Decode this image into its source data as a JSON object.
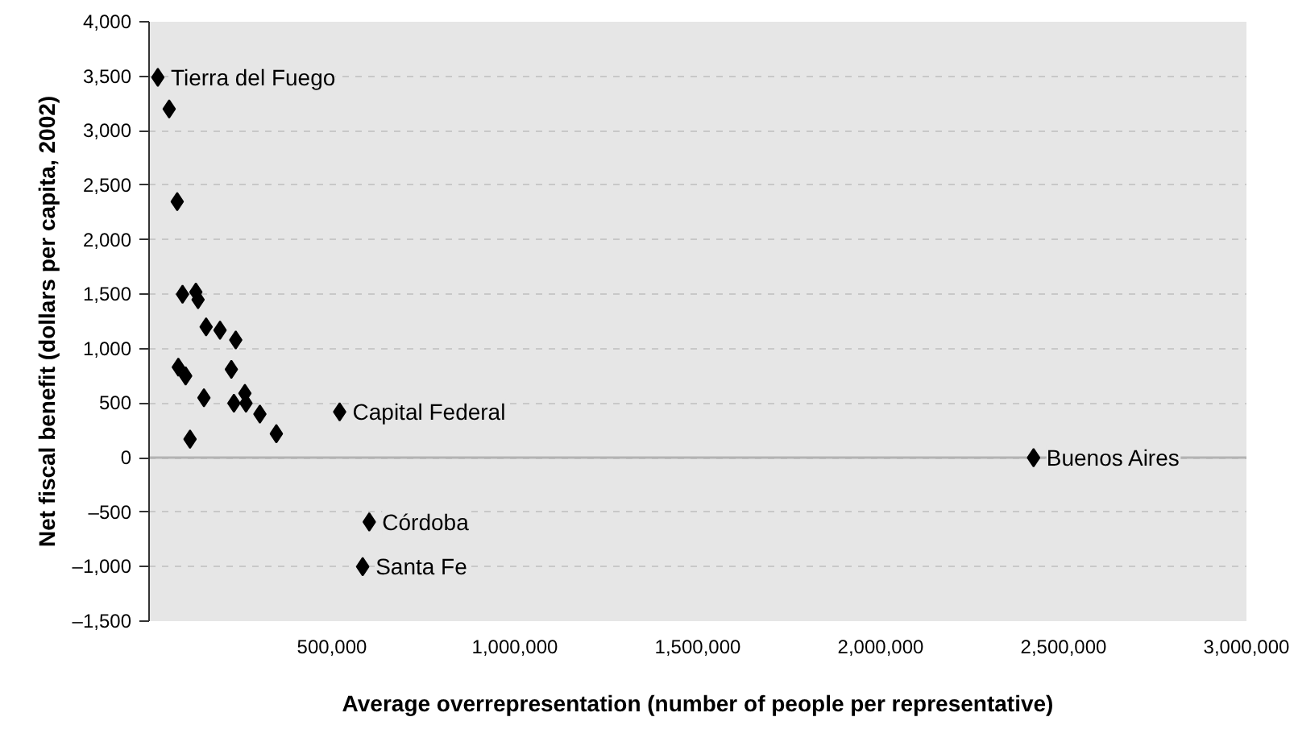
{
  "chart_data": {
    "type": "scatter",
    "xlabel": "Average overrepresentation (number of people per representative)",
    "ylabel": "Net fiscal benefit (dollars per capita, 2002)",
    "x": [
      24000,
      55000,
      77000,
      91500,
      128000,
      134000,
      156000,
      194000,
      237000,
      80000,
      100000,
      225000,
      150000,
      262000,
      232000,
      265000,
      303000,
      348000,
      112000,
      521000,
      602000,
      584000,
      2418000
    ],
    "series": [
      {
        "color": "#000000",
        "values": [
          3490,
          3200,
          2350,
          1500,
          1520,
          1450,
          1200,
          1170,
          1080,
          830,
          750,
          810,
          550,
          590,
          500,
          500,
          400,
          220,
          170,
          420,
          -590,
          -1000,
          0
        ]
      }
    ],
    "marker": "diamond",
    "grid": "y",
    "xlim": [
      0,
      3000000
    ],
    "xticks": [
      {
        "value": 500000,
        "label": "500,000"
      },
      {
        "value": 1000000,
        "label": "1,000,000"
      },
      {
        "value": 1500000,
        "label": "1,500,000"
      },
      {
        "value": 2000000,
        "label": "2,000,000"
      },
      {
        "value": 2500000,
        "label": "2,500,000"
      },
      {
        "value": 3000000,
        "label": "3,000,000"
      }
    ],
    "ylim": [
      -1500,
      4000
    ],
    "yticks": [
      {
        "value": -1500,
        "label": "–1,500"
      },
      {
        "value": -1000,
        "label": "–1,000"
      },
      {
        "value": -500,
        "label": "–500"
      },
      0,
      500,
      {
        "value": 1000,
        "label": "1,000"
      },
      {
        "value": 1500,
        "label": "1,500"
      },
      {
        "value": 2000,
        "label": "2,000"
      },
      {
        "value": 2500,
        "label": "2,500"
      },
      {
        "value": 3000,
        "label": "3,000"
      },
      {
        "value": 3500,
        "label": "3,500"
      },
      {
        "value": 4000,
        "label": "4,000"
      }
    ],
    "ref_lines": [
      {
        "axis": "y",
        "value": 0,
        "color": "#b3b3b3",
        "line_style": "solid"
      }
    ],
    "annotations": [
      {
        "text": "Tierra del Fuego",
        "x": 24000,
        "y": 3490
      },
      {
        "text": "Capital Federal",
        "x": 521000,
        "y": 420
      },
      {
        "text": "Córdoba",
        "x": 602000,
        "y": -590
      },
      {
        "text": "Santa Fe",
        "x": 584000,
        "y": -1000
      },
      {
        "text": "Buenos Aires",
        "x": 2418000,
        "y": 0
      }
    ]
  }
}
